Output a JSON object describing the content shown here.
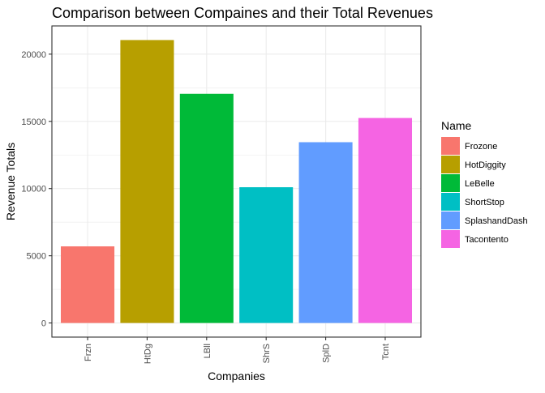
{
  "chart_data": {
    "type": "bar",
    "title": "Comparison between Compaines and their Total Revenues",
    "xlabel": "Companies",
    "ylabel": "Revenue Totals",
    "categories": [
      "Frzn",
      "HtDg",
      "LBll",
      "ShrS",
      "SplD",
      "Tcnt"
    ],
    "values": [
      5700,
      21050,
      17050,
      10100,
      13450,
      15250
    ],
    "ylim": [
      -1050,
      22100
    ],
    "yticks": [
      0,
      5000,
      10000,
      15000,
      20000
    ],
    "ytick_labels": [
      "0",
      "5000",
      "10000",
      "15000",
      "20000"
    ],
    "grid": true,
    "legend": {
      "title": "Name",
      "position": "right",
      "entries": [
        "Frozone",
        "HotDiggity",
        "LeBelle",
        "ShortStop",
        "SplashandDash",
        "Tacontento"
      ]
    },
    "colors": [
      "#F8766D",
      "#B79F00",
      "#00BA38",
      "#00BFC4",
      "#619CFF",
      "#F564E3"
    ]
  }
}
